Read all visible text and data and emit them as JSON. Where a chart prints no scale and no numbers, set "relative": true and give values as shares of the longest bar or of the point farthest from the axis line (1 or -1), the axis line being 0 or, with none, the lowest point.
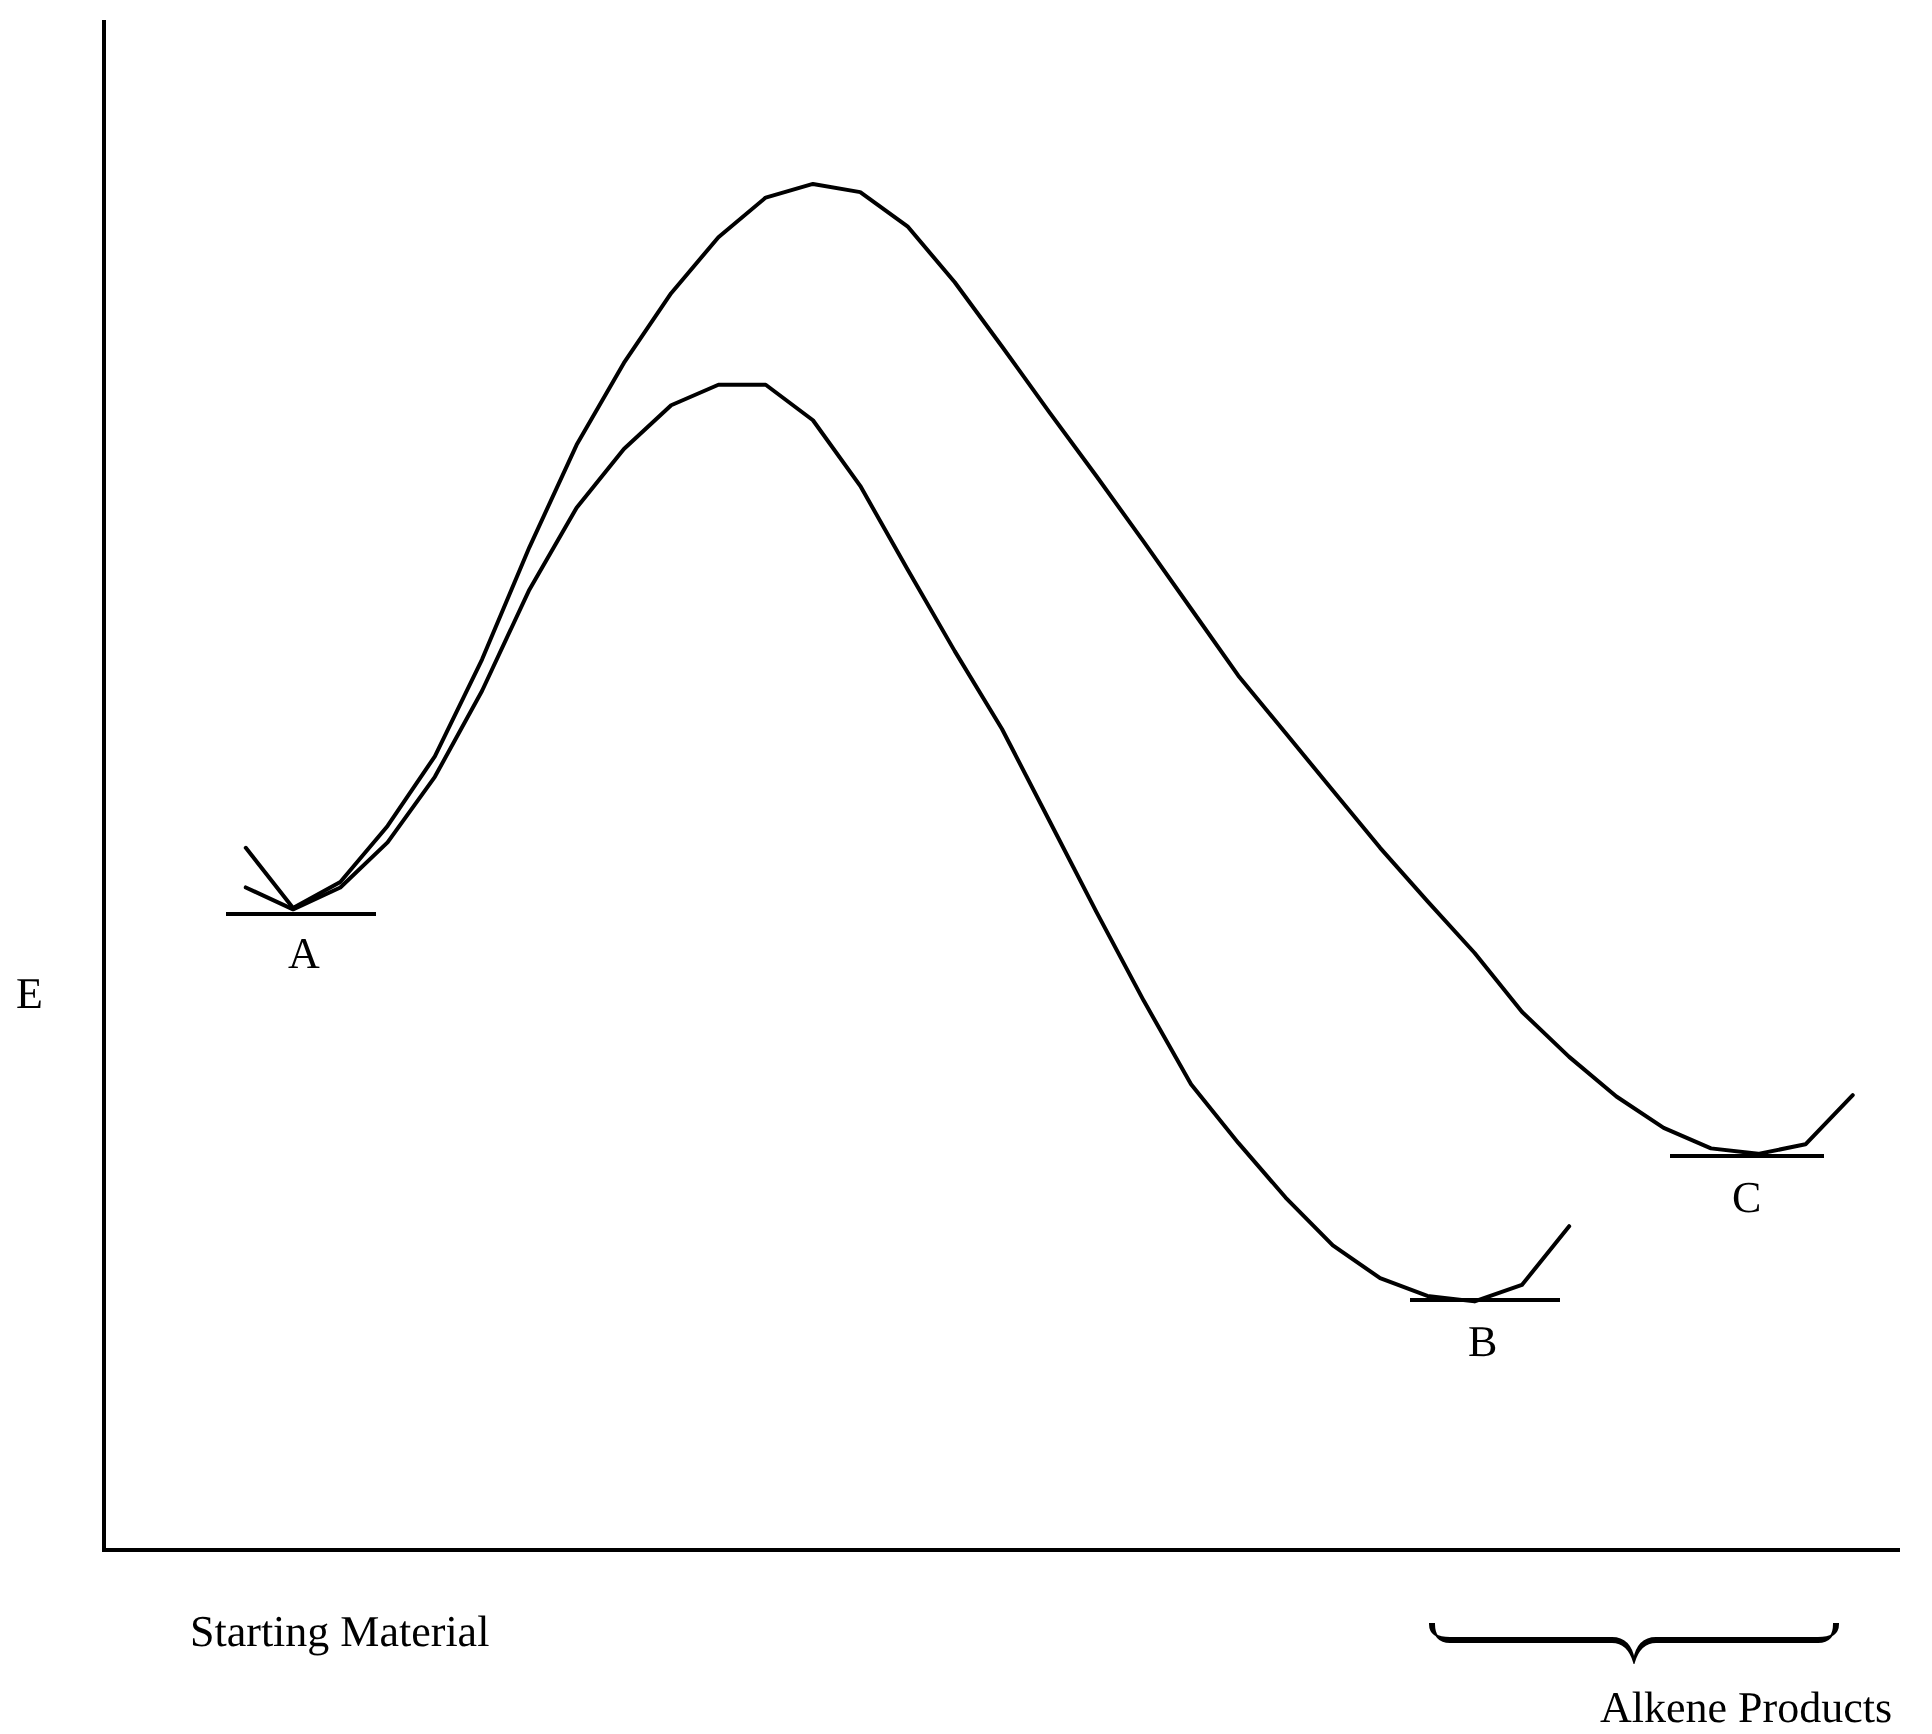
{
  "chart_data": {
    "type": "line",
    "relative": true,
    "ylabel": "E",
    "legend": false,
    "marker": "none",
    "line_style": "solid",
    "categories": [
      null,
      null,
      null,
      null,
      null,
      null,
      null,
      null,
      null,
      null,
      null,
      null,
      null,
      null,
      null,
      null,
      null,
      null,
      null,
      null,
      null,
      null,
      null,
      null,
      null,
      null,
      null,
      null,
      null,
      null,
      null,
      null,
      null,
      null,
      null,
      null,
      null,
      null,
      null
    ],
    "series": [
      {
        "color": "#000000",
        "values": [
          null,
          null,
          null,
          0.514,
          0.47,
          0.489,
          0.53,
          0.581,
          0.652,
          0.734,
          0.809,
          0.869,
          0.92,
          0.961,
          0.99,
          1,
          0.994,
          0.969,
          0.928,
          0.881,
          0.833,
          0.786,
          0.738,
          0.689,
          0.64,
          0.598,
          0.556,
          0.514,
          0.475,
          0.437,
          0.394,
          0.361,
          0.332,
          0.309,
          0.294,
          0.29,
          0.297,
          0.333,
          null
        ]
      },
      {
        "color": "#000000",
        "values": [
          null,
          null,
          null,
          0.485,
          0.469,
          0.485,
          0.518,
          0.566,
          0.629,
          0.703,
          0.763,
          0.806,
          0.838,
          0.853,
          0.853,
          0.827,
          0.779,
          0.718,
          0.658,
          0.601,
          0.534,
          0.467,
          0.402,
          0.341,
          0.298,
          0.258,
          0.223,
          0.199,
          0.186,
          0.182,
          0.194,
          0.237,
          null,
          null,
          null,
          null,
          null,
          null,
          null
        ]
      }
    ],
    "annotations": [
      "A",
      "B",
      "C",
      "Starting Material",
      "Alkene Products"
    ]
  }
}
